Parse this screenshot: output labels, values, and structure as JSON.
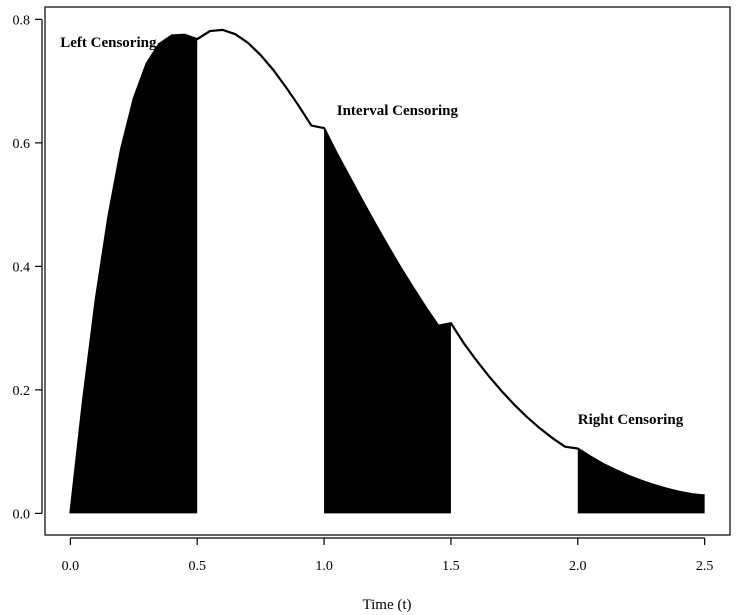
{
  "chart_data": {
    "type": "area",
    "title": "",
    "xlabel": "Time (t)",
    "ylabel": "",
    "xlim": [
      -0.1,
      2.6
    ],
    "ylim": [
      -0.035,
      0.82
    ],
    "grid": false,
    "x_ticks": [
      0.0,
      0.5,
      1.0,
      1.5,
      2.0,
      2.5
    ],
    "x_tick_labels": [
      "0.0",
      "0.5",
      "1.0",
      "1.5",
      "2.0",
      "2.5"
    ],
    "y_ticks": [
      0.0,
      0.2,
      0.4,
      0.6,
      0.8
    ],
    "y_tick_labels": [
      "0.0",
      "0.2",
      "0.4",
      "0.6",
      "0.8"
    ],
    "series": [
      {
        "x": [
          0.0,
          0.05,
          0.1,
          0.15,
          0.2,
          0.25,
          0.3,
          0.35,
          0.4,
          0.45,
          0.5,
          0.55,
          0.6,
          0.65,
          0.7,
          0.75,
          0.8,
          0.85,
          0.9,
          0.95,
          1.0,
          1.05,
          1.1,
          1.15,
          1.2,
          1.25,
          1.3,
          1.35,
          1.4,
          1.45,
          1.5,
          1.55,
          1.6,
          1.65,
          1.7,
          1.75,
          1.8,
          1.85,
          1.9,
          1.95,
          2.0,
          2.05,
          2.1,
          2.15,
          2.2,
          2.25,
          2.3,
          2.35,
          2.4,
          2.45,
          2.5
        ],
        "values": [
          0.0,
          0.183,
          0.346,
          0.481,
          0.59,
          0.672,
          0.728,
          0.76,
          0.774,
          0.775,
          0.768,
          0.781,
          0.783,
          0.776,
          0.762,
          0.742,
          0.718,
          0.69,
          0.66,
          0.628,
          0.624,
          0.583,
          0.545,
          0.507,
          0.47,
          0.434,
          0.399,
          0.366,
          0.334,
          0.304,
          0.308,
          0.276,
          0.248,
          0.222,
          0.198,
          0.176,
          0.156,
          0.138,
          0.122,
          0.108,
          0.105,
          0.092,
          0.08,
          0.07,
          0.061,
          0.053,
          0.046,
          0.04,
          0.035,
          0.031,
          0.029
        ]
      }
    ],
    "shaded_regions": [
      {
        "x_start": 0.0,
        "x_end": 0.5
      },
      {
        "x_start": 1.0,
        "x_end": 1.5
      },
      {
        "x_start": 2.0,
        "x_end": 2.5
      }
    ],
    "annotations": [
      {
        "text": "Left Censoring",
        "x": -0.04,
        "y": 0.755
      },
      {
        "text": "Interval Censoring",
        "x": 1.05,
        "y": 0.645
      },
      {
        "text": "Right Censoring",
        "x": 2.0,
        "y": 0.145
      }
    ]
  }
}
